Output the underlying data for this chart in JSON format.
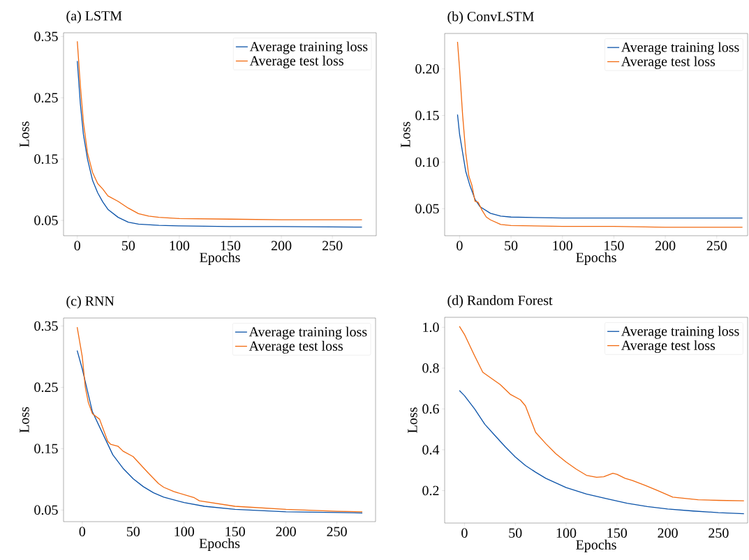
{
  "chart_data": [
    {
      "type": "line",
      "title": "(a) LSTM",
      "xlabel": "Epochs",
      "ylabel": "Loss",
      "xlim": [
        -13.5,
        293
      ],
      "ylim": [
        0.025,
        0.356
      ],
      "xticks": [
        0,
        50,
        100,
        150,
        200,
        250
      ],
      "yticks": [
        0.05,
        0.15,
        0.25,
        0.35
      ],
      "legend": "top right",
      "line_style": "solid",
      "series": [
        {
          "name": "Average training loss",
          "color": "#0a52a8",
          "x": [
            0,
            3,
            6,
            10,
            15,
            20,
            25,
            30,
            40,
            50,
            60,
            80,
            100,
            150,
            200,
            279
          ],
          "values": [
            0.31,
            0.24,
            0.19,
            0.15,
            0.115,
            0.095,
            0.08,
            0.068,
            0.055,
            0.047,
            0.044,
            0.042,
            0.041,
            0.04,
            0.04,
            0.039
          ]
        },
        {
          "name": "Average test loss",
          "color": "#f26a10",
          "x": [
            0,
            3,
            6,
            10,
            15,
            20,
            25,
            30,
            40,
            50,
            60,
            70,
            80,
            100,
            150,
            200,
            279
          ],
          "values": [
            0.342,
            0.27,
            0.21,
            0.16,
            0.128,
            0.11,
            0.101,
            0.09,
            0.081,
            0.07,
            0.061,
            0.057,
            0.055,
            0.053,
            0.052,
            0.051,
            0.051
          ]
        }
      ]
    },
    {
      "type": "line",
      "title": "(b) ConvLSTM",
      "xlabel": "Epochs",
      "ylabel": "Loss",
      "xlim": [
        -14.5,
        280
      ],
      "ylim": [
        0.021,
        0.238
      ],
      "xticks": [
        0,
        50,
        100,
        150,
        200,
        250
      ],
      "yticks": [
        0.05,
        {
          "value": 0.1,
          "label": "0.10"
        },
        0.15,
        {
          "value": 0.2,
          "label": "0.20"
        }
      ],
      "legend": "top right",
      "line_style": "solid",
      "series": [
        {
          "name": "Average training loss",
          "color": "#0a52a8",
          "x": [
            -2,
            0,
            3,
            6,
            10,
            15,
            20,
            30,
            40,
            50,
            100,
            150,
            200,
            275
          ],
          "values": [
            0.151,
            0.13,
            0.11,
            0.09,
            0.075,
            0.06,
            0.052,
            0.045,
            0.042,
            0.041,
            0.04,
            0.04,
            0.04,
            0.04
          ]
        },
        {
          "name": "Average test loss",
          "color": "#f26a10",
          "x": [
            -2,
            0,
            3,
            6,
            9,
            12,
            15,
            18,
            22,
            26,
            30,
            40,
            50,
            100,
            150,
            200,
            275
          ],
          "values": [
            0.229,
            0.2,
            0.15,
            0.11,
            0.085,
            0.075,
            0.058,
            0.057,
            0.048,
            0.041,
            0.038,
            0.033,
            0.032,
            0.031,
            0.031,
            0.03,
            0.03
          ]
        }
      ]
    },
    {
      "type": "line",
      "title": "(c) RNN",
      "xlabel": "Epochs",
      "ylabel": "Loss",
      "xlim": [
        -18.4,
        288
      ],
      "ylim": [
        0.031,
        0.363
      ],
      "xticks": [
        0,
        50,
        100,
        150,
        200,
        250
      ],
      "yticks": [
        0.05,
        0.15,
        0.25,
        0.35
      ],
      "legend": "top right",
      "line_style": "solid",
      "series": [
        {
          "name": "Average training loss",
          "color": "#0a52a8",
          "x": [
            -5,
            0,
            5,
            10,
            20,
            30,
            40,
            50,
            60,
            70,
            80,
            100,
            120,
            150,
            200,
            250,
            275
          ],
          "values": [
            0.31,
            0.28,
            0.245,
            0.21,
            0.175,
            0.14,
            0.118,
            0.101,
            0.088,
            0.078,
            0.071,
            0.062,
            0.056,
            0.051,
            0.047,
            0.046,
            0.045
          ]
        },
        {
          "name": "Average test loss",
          "color": "#f26a10",
          "x": [
            -5,
            0,
            3,
            6,
            10,
            17,
            25,
            28,
            35,
            40,
            50,
            55,
            65,
            75,
            80,
            90,
            100,
            110,
            115,
            150,
            200,
            250,
            275
          ],
          "values": [
            0.348,
            0.3,
            0.25,
            0.225,
            0.207,
            0.198,
            0.162,
            0.157,
            0.154,
            0.146,
            0.137,
            0.128,
            0.11,
            0.093,
            0.087,
            0.08,
            0.075,
            0.07,
            0.065,
            0.056,
            0.051,
            0.048,
            0.047
          ]
        }
      ]
    },
    {
      "type": "line",
      "title": "(d) Random Forest",
      "xlabel": "Epochs",
      "ylabel": "Loss",
      "xlim": [
        -19.5,
        278.6
      ],
      "ylim": [
        0.041,
        1.049
      ],
      "xticks": [
        0,
        50,
        100,
        150,
        200,
        250
      ],
      "yticks": [
        {
          "value": 0.2,
          "label": "0.2"
        },
        {
          "value": 0.4,
          "label": "0.4"
        },
        {
          "value": 0.6,
          "label": "0.6"
        },
        {
          "value": 0.8,
          "label": "0.8"
        },
        {
          "value": 1.0,
          "label": "1.0"
        }
      ],
      "legend": "top right",
      "line_style": "solid",
      "series": [
        {
          "name": "Average training loss",
          "color": "#0a52a8",
          "x": [
            -5,
            0,
            10,
            20,
            30,
            40,
            50,
            60,
            70,
            80,
            100,
            120,
            140,
            160,
            180,
            200,
            225,
            250,
            275
          ],
          "values": [
            0.69,
            0.665,
            0.6,
            0.525,
            0.47,
            0.415,
            0.365,
            0.323,
            0.29,
            0.26,
            0.215,
            0.183,
            0.16,
            0.138,
            0.122,
            0.11,
            0.1,
            0.092,
            0.087
          ]
        },
        {
          "name": "Average test loss",
          "color": "#f26a10",
          "x": [
            -5,
            0,
            10,
            18,
            25,
            35,
            45,
            55,
            60,
            65,
            70,
            80,
            90,
            100,
            110,
            120,
            130,
            137,
            146,
            150,
            158,
            165,
            178,
            190,
            205,
            230,
            250,
            275
          ],
          "values": [
            1.005,
            0.965,
            0.86,
            0.78,
            0.755,
            0.72,
            0.672,
            0.645,
            0.615,
            0.55,
            0.485,
            0.43,
            0.38,
            0.34,
            0.305,
            0.275,
            0.265,
            0.268,
            0.285,
            0.28,
            0.26,
            0.25,
            0.225,
            0.2,
            0.168,
            0.155,
            0.152,
            0.15
          ]
        }
      ]
    }
  ]
}
